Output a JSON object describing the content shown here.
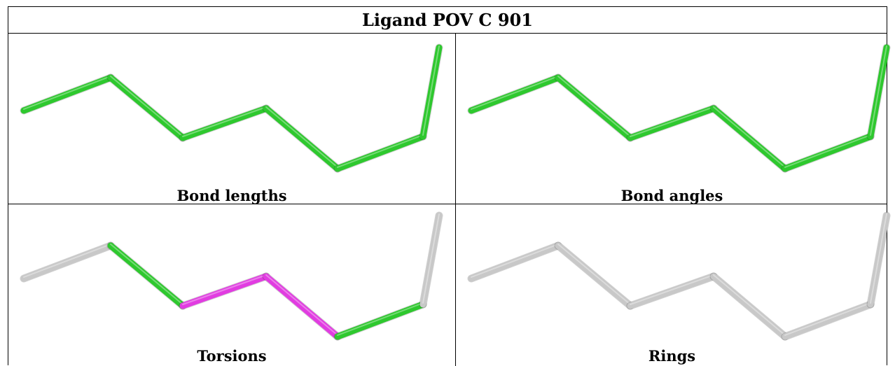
{
  "title": "Ligand POV C 901",
  "colors": {
    "green": "#2ec82e",
    "magenta": "#e13ce1",
    "grey": "#c8c8c8"
  },
  "panels": [
    {
      "caption": "Bond lengths",
      "bond_colors": [
        "green",
        "green",
        "green",
        "green",
        "green",
        "green"
      ]
    },
    {
      "caption": "Bond angles",
      "bond_colors": [
        "green",
        "green",
        "green",
        "green",
        "green",
        "green"
      ]
    },
    {
      "caption": "Torsions",
      "bond_colors": [
        "grey",
        "green",
        "magenta",
        "magenta",
        "green",
        "grey"
      ]
    },
    {
      "caption": "Rings",
      "bond_colors": [
        "grey",
        "grey",
        "grey",
        "grey",
        "grey",
        "grey"
      ]
    }
  ]
}
